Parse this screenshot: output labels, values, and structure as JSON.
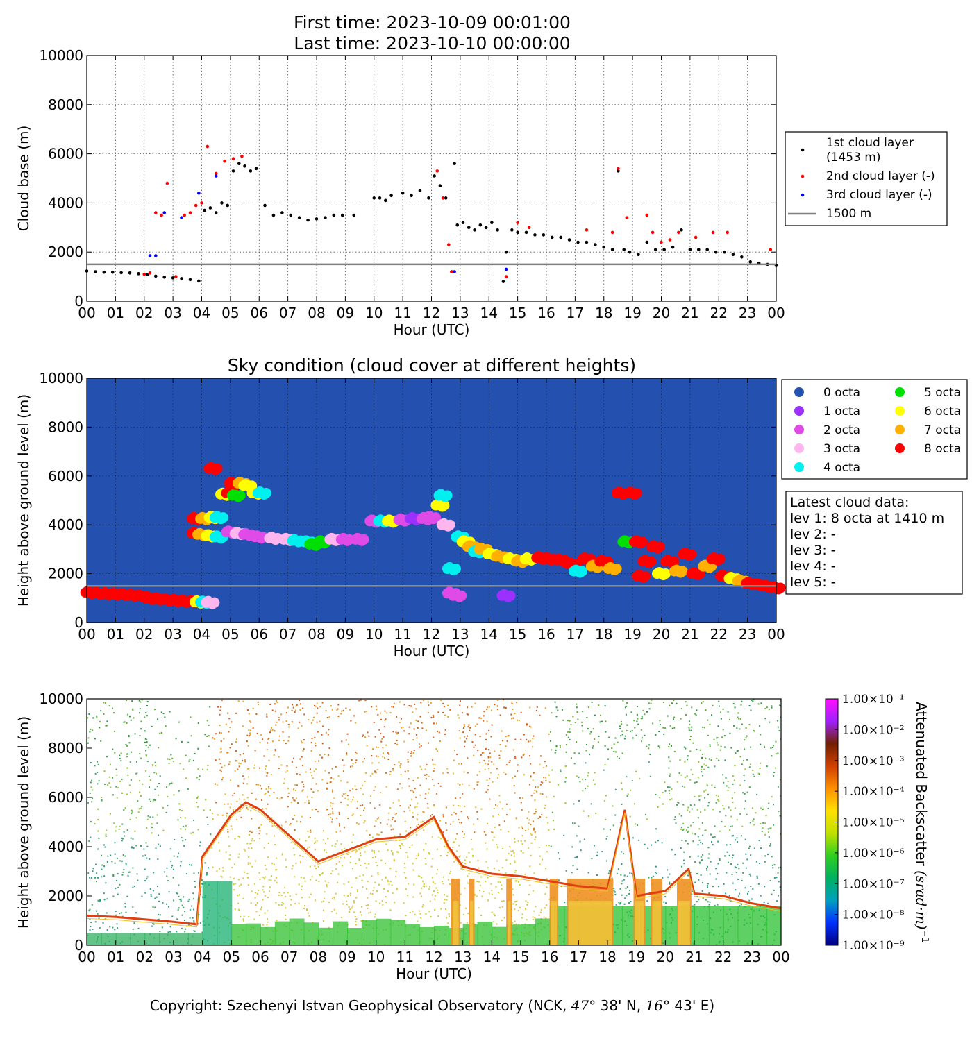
{
  "header": {
    "first_time": "First time: 2023-10-09 00:01:00",
    "last_time": "Last time: 2023-10-10 00:00:00"
  },
  "hour_ticks": [
    "00",
    "01",
    "02",
    "03",
    "04",
    "05",
    "06",
    "07",
    "08",
    "09",
    "10",
    "11",
    "12",
    "13",
    "14",
    "15",
    "16",
    "17",
    "18",
    "19",
    "20",
    "21",
    "22",
    "23",
    "00"
  ],
  "height_ticks": [
    "0",
    "2000",
    "4000",
    "6000",
    "8000",
    "10000"
  ],
  "xlabel": "Hour (UTC)",
  "chart_data": [
    {
      "type": "scatter",
      "xlabel": "Hour (UTC)",
      "ylabel": "Cloud base (m)",
      "xlim": [
        0,
        24
      ],
      "ylim": [
        0,
        10000
      ],
      "grid": true,
      "legend_position": "right",
      "series": [
        {
          "name": "1st cloud layer\n(1453 m)",
          "color": "#000000",
          "x": [
            0.0,
            0.3,
            0.6,
            0.9,
            1.2,
            1.5,
            1.8,
            2.1,
            2.4,
            2.7,
            3.0,
            3.3,
            3.6,
            3.9,
            4.1,
            4.3,
            4.5,
            4.7,
            4.9,
            5.1,
            5.3,
            5.5,
            5.7,
            5.9,
            6.2,
            6.5,
            6.8,
            7.1,
            7.4,
            7.7,
            8.0,
            8.3,
            8.6,
            8.9,
            9.3,
            10.0,
            10.2,
            10.4,
            10.6,
            11.0,
            11.3,
            11.6,
            11.9,
            12.1,
            12.3,
            12.5,
            12.7,
            12.8,
            12.9,
            13.1,
            13.3,
            13.5,
            13.7,
            13.9,
            14.1,
            14.3,
            14.5,
            14.6,
            14.8,
            15.0,
            15.3,
            15.6,
            15.9,
            16.2,
            16.5,
            16.8,
            17.1,
            17.4,
            17.7,
            18.0,
            18.3,
            18.5,
            18.7,
            18.9,
            19.2,
            19.5,
            19.8,
            20.1,
            20.4,
            20.7,
            21.0,
            21.3,
            21.6,
            21.9,
            22.2,
            22.5,
            22.8,
            23.1,
            23.4,
            23.7,
            24.0
          ],
          "y": [
            1230,
            1200,
            1180,
            1180,
            1160,
            1150,
            1120,
            1080,
            1020,
            980,
            950,
            920,
            880,
            820,
            3700,
            3800,
            3600,
            4000,
            3900,
            5300,
            5600,
            5500,
            5300,
            5400,
            3900,
            3500,
            3600,
            3500,
            3400,
            3300,
            3350,
            3400,
            3500,
            3500,
            3500,
            4200,
            4200,
            4100,
            4300,
            4400,
            4300,
            4500,
            4200,
            5100,
            4700,
            4200,
            1200,
            5600,
            3100,
            3200,
            3000,
            2900,
            3100,
            3000,
            3200,
            2900,
            800,
            2000,
            2900,
            2800,
            2800,
            2700,
            2700,
            2600,
            2600,
            2500,
            2400,
            2400,
            2300,
            2200,
            2100,
            5300,
            2100,
            2000,
            1900,
            2400,
            2100,
            2100,
            2200,
            2900,
            2100,
            2100,
            2100,
            2000,
            2000,
            1900,
            1800,
            1600,
            1550,
            1500,
            1450
          ]
        },
        {
          "name": "2nd cloud layer (-)",
          "color": "#ff0000",
          "x": [
            2.0,
            2.2,
            2.4,
            2.6,
            2.8,
            3.1,
            3.4,
            3.6,
            3.8,
            4.0,
            4.2,
            4.5,
            4.8,
            5.1,
            5.4,
            12.2,
            12.4,
            12.6,
            12.7,
            14.6,
            15.0,
            15.4,
            17.4,
            18.3,
            18.5,
            18.8,
            19.5,
            19.7,
            20.0,
            20.3,
            20.6,
            21.2,
            21.8,
            22.3,
            23.8
          ],
          "y": [
            1100,
            1150,
            3600,
            3500,
            4800,
            1000,
            3500,
            3600,
            3900,
            4000,
            6300,
            5200,
            5700,
            5800,
            5900,
            5300,
            4200,
            2300,
            1200,
            1000,
            3200,
            3000,
            2900,
            2800,
            5400,
            3400,
            3500,
            2800,
            2400,
            2500,
            2800,
            2600,
            2800,
            2800,
            2100
          ]
        },
        {
          "name": "3rd cloud layer (-)",
          "color": "#0000ff",
          "x": [
            2.2,
            2.4,
            2.7,
            3.3,
            3.9,
            4.5,
            12.8,
            14.6
          ],
          "y": [
            1850,
            1850,
            3600,
            3400,
            4400,
            5100,
            1200,
            1300
          ]
        },
        {
          "name": "1500 m",
          "color": "#808080",
          "x": [
            0,
            24
          ],
          "y": [
            1500,
            1500
          ]
        }
      ]
    },
    {
      "type": "scatter",
      "title": "Sky condition (cloud cover at different heights)",
      "xlabel": "Hour (UTC)",
      "ylabel": "Height above ground level (m)",
      "xlim": [
        0,
        24
      ],
      "ylim": [
        0,
        10000
      ],
      "background": "#2451b0",
      "grid": true,
      "legend_position": "top-right",
      "legend": [
        {
          "name": "0 octa",
          "color": "#2451b0"
        },
        {
          "name": "1 octa",
          "color": "#9b30ff"
        },
        {
          "name": "2 octa",
          "color": "#e04be8"
        },
        {
          "name": "3 octa",
          "color": "#ffb6ee"
        },
        {
          "name": "4 octa",
          "color": "#00f0f0"
        },
        {
          "name": "5 octa",
          "color": "#00e000"
        },
        {
          "name": "6 octa",
          "color": "#ffff00"
        },
        {
          "name": "7 octa",
          "color": "#ffb000"
        },
        {
          "name": "8 octa",
          "color": "#ff0000"
        }
      ],
      "points": [
        {
          "x": 0.1,
          "y": 1230,
          "o": 8
        },
        {
          "x": 0.4,
          "y": 1200,
          "o": 8
        },
        {
          "x": 0.7,
          "y": 1180,
          "o": 8
        },
        {
          "x": 1.0,
          "y": 1170,
          "o": 8
        },
        {
          "x": 1.3,
          "y": 1150,
          "o": 8
        },
        {
          "x": 1.6,
          "y": 1120,
          "o": 8
        },
        {
          "x": 1.9,
          "y": 1080,
          "o": 8
        },
        {
          "x": 2.2,
          "y": 1000,
          "o": 8
        },
        {
          "x": 2.5,
          "y": 960,
          "o": 8
        },
        {
          "x": 2.8,
          "y": 930,
          "o": 8
        },
        {
          "x": 3.1,
          "y": 900,
          "o": 8
        },
        {
          "x": 3.4,
          "y": 880,
          "o": 8
        },
        {
          "x": 3.7,
          "y": 860,
          "o": 8
        },
        {
          "x": 3.9,
          "y": 840,
          "o": 6
        },
        {
          "x": 4.1,
          "y": 830,
          "o": 4
        },
        {
          "x": 4.3,
          "y": 820,
          "o": 3
        },
        {
          "x": 3.8,
          "y": 3650,
          "o": 8
        },
        {
          "x": 4.0,
          "y": 3600,
          "o": 7
        },
        {
          "x": 4.3,
          "y": 3550,
          "o": 6
        },
        {
          "x": 4.6,
          "y": 3500,
          "o": 4
        },
        {
          "x": 3.8,
          "y": 4250,
          "o": 8
        },
        {
          "x": 4.1,
          "y": 4250,
          "o": 7
        },
        {
          "x": 4.4,
          "y": 4300,
          "o": 6
        },
        {
          "x": 4.6,
          "y": 4300,
          "o": 4
        },
        {
          "x": 4.4,
          "y": 6300,
          "o": 8
        },
        {
          "x": 4.8,
          "y": 5250,
          "o": 6
        },
        {
          "x": 5.0,
          "y": 5300,
          "o": 8
        },
        {
          "x": 5.2,
          "y": 5200,
          "o": 5
        },
        {
          "x": 5.1,
          "y": 5700,
          "o": 8
        },
        {
          "x": 5.4,
          "y": 5700,
          "o": 7
        },
        {
          "x": 5.6,
          "y": 5600,
          "o": 6
        },
        {
          "x": 5.9,
          "y": 5300,
          "o": 6
        },
        {
          "x": 6.1,
          "y": 5300,
          "o": 4
        },
        {
          "x": 5.0,
          "y": 3700,
          "o": 2
        },
        {
          "x": 5.3,
          "y": 3650,
          "o": 3
        },
        {
          "x": 5.6,
          "y": 3600,
          "o": 2
        },
        {
          "x": 6.0,
          "y": 3500,
          "o": 2
        },
        {
          "x": 6.5,
          "y": 3450,
          "o": 3
        },
        {
          "x": 7.0,
          "y": 3400,
          "o": 3
        },
        {
          "x": 7.3,
          "y": 3350,
          "o": 4
        },
        {
          "x": 7.7,
          "y": 3300,
          "o": 4
        },
        {
          "x": 7.9,
          "y": 3200,
          "o": 5
        },
        {
          "x": 8.2,
          "y": 3300,
          "o": 5
        },
        {
          "x": 8.6,
          "y": 3400,
          "o": 3
        },
        {
          "x": 9.0,
          "y": 3400,
          "o": 2
        },
        {
          "x": 9.5,
          "y": 3400,
          "o": 2
        },
        {
          "x": 10.0,
          "y": 4150,
          "o": 2
        },
        {
          "x": 10.3,
          "y": 4150,
          "o": 4
        },
        {
          "x": 10.6,
          "y": 4150,
          "o": 6
        },
        {
          "x": 11.0,
          "y": 4200,
          "o": 2
        },
        {
          "x": 11.4,
          "y": 4250,
          "o": 1
        },
        {
          "x": 11.8,
          "y": 4250,
          "o": 2
        },
        {
          "x": 12.0,
          "y": 4300,
          "o": 2
        },
        {
          "x": 12.3,
          "y": 4800,
          "o": 6
        },
        {
          "x": 12.4,
          "y": 5200,
          "o": 4
        },
        {
          "x": 12.5,
          "y": 4000,
          "o": 3
        },
        {
          "x": 12.7,
          "y": 2200,
          "o": 4
        },
        {
          "x": 12.7,
          "y": 1200,
          "o": 2
        },
        {
          "x": 12.9,
          "y": 1100,
          "o": 2
        },
        {
          "x": 13.0,
          "y": 3500,
          "o": 4
        },
        {
          "x": 13.2,
          "y": 3300,
          "o": 6
        },
        {
          "x": 13.4,
          "y": 3100,
          "o": 7
        },
        {
          "x": 13.6,
          "y": 2900,
          "o": 4
        },
        {
          "x": 13.8,
          "y": 3000,
          "o": 7
        },
        {
          "x": 14.1,
          "y": 2800,
          "o": 6
        },
        {
          "x": 14.4,
          "y": 2700,
          "o": 7
        },
        {
          "x": 14.6,
          "y": 1100,
          "o": 1
        },
        {
          "x": 14.8,
          "y": 2600,
          "o": 6
        },
        {
          "x": 15.1,
          "y": 2500,
          "o": 7
        },
        {
          "x": 15.4,
          "y": 2600,
          "o": 6
        },
        {
          "x": 15.8,
          "y": 2650,
          "o": 8
        },
        {
          "x": 16.1,
          "y": 2600,
          "o": 8
        },
        {
          "x": 16.5,
          "y": 2550,
          "o": 8
        },
        {
          "x": 16.9,
          "y": 2400,
          "o": 8
        },
        {
          "x": 17.1,
          "y": 2100,
          "o": 4
        },
        {
          "x": 17.4,
          "y": 2600,
          "o": 8
        },
        {
          "x": 17.7,
          "y": 2300,
          "o": 7
        },
        {
          "x": 18.0,
          "y": 2500,
          "o": 8
        },
        {
          "x": 18.3,
          "y": 2200,
          "o": 7
        },
        {
          "x": 18.6,
          "y": 5300,
          "o": 8
        },
        {
          "x": 19.0,
          "y": 5300,
          "o": 8
        },
        {
          "x": 18.8,
          "y": 3300,
          "o": 5
        },
        {
          "x": 19.2,
          "y": 3300,
          "o": 8
        },
        {
          "x": 19.3,
          "y": 1900,
          "o": 8
        },
        {
          "x": 19.5,
          "y": 2500,
          "o": 8
        },
        {
          "x": 19.8,
          "y": 3100,
          "o": 8
        },
        {
          "x": 20.0,
          "y": 2000,
          "o": 6
        },
        {
          "x": 20.3,
          "y": 2500,
          "o": 8
        },
        {
          "x": 20.6,
          "y": 2100,
          "o": 7
        },
        {
          "x": 20.9,
          "y": 2800,
          "o": 8
        },
        {
          "x": 21.2,
          "y": 2000,
          "o": 8
        },
        {
          "x": 21.6,
          "y": 2300,
          "o": 7
        },
        {
          "x": 21.9,
          "y": 2600,
          "o": 8
        },
        {
          "x": 22.2,
          "y": 1900,
          "o": 8
        },
        {
          "x": 22.5,
          "y": 1800,
          "o": 6
        },
        {
          "x": 22.8,
          "y": 1700,
          "o": 7
        },
        {
          "x": 23.1,
          "y": 1600,
          "o": 8
        },
        {
          "x": 23.4,
          "y": 1550,
          "o": 8
        },
        {
          "x": 23.7,
          "y": 1480,
          "o": 8
        },
        {
          "x": 24.0,
          "y": 1420,
          "o": 8
        }
      ],
      "reference_line_y": 1500
    },
    {
      "type": "heatmap",
      "xlabel": "Hour (UTC)",
      "ylabel": "Height above ground level (m)",
      "xlim": [
        0,
        24
      ],
      "ylim": [
        0,
        10000
      ],
      "colorbar_label": "Attenuated Backscatter $(srad \\cdot m)^{-1}$",
      "colorbar_ticks": [
        "1.00×10⁻¹",
        "1.00×10⁻²",
        "1.00×10⁻³",
        "1.00×10⁻⁴",
        "1.00×10⁻⁵",
        "1.00×10⁻⁶",
        "1.00×10⁻⁷",
        "1.00×10⁻⁸",
        "1.00×10⁻⁹"
      ],
      "colormap": [
        "#000080",
        "#0030ff",
        "#00a0c0",
        "#00b060",
        "#30d020",
        "#c0e000",
        "#ffe000",
        "#ff9000",
        "#d04000",
        "#702000",
        "#a020ff",
        "#ff10ff"
      ],
      "cloud_base_trace": {
        "x": [
          0,
          1,
          2,
          3,
          3.8,
          4.0,
          5.0,
          5.5,
          6.0,
          8,
          10,
          11,
          12,
          12.5,
          13,
          14,
          15,
          16,
          17,
          18,
          18.6,
          19,
          20,
          20.8,
          21,
          22,
          23,
          24
        ],
        "y": [
          1200,
          1150,
          1050,
          950,
          850,
          3600,
          5300,
          5800,
          5500,
          3400,
          4300,
          4400,
          5200,
          4000,
          3200,
          2900,
          2800,
          2600,
          2400,
          2300,
          5500,
          2000,
          2200,
          3100,
          2100,
          2000,
          1700,
          1500
        ]
      },
      "precip_bands": [
        [
          12.6,
          12.9
        ],
        [
          13.2,
          13.4
        ],
        [
          14.5,
          14.7
        ],
        [
          16.0,
          16.3
        ],
        [
          16.6,
          18.2
        ],
        [
          18.9,
          19.3
        ],
        [
          19.5,
          19.9
        ],
        [
          20.4,
          20.9
        ]
      ]
    }
  ],
  "panel1_legend": [
    "1st cloud layer",
    "(1453 m)",
    "2nd cloud layer (-)",
    "3rd cloud layer (-)",
    "1500 m"
  ],
  "panel2": {
    "title": "Sky condition (cloud cover at different heights)"
  },
  "latest_box": {
    "title": "Latest cloud data:",
    "lines": [
      "lev 1: 8 octa at 1410 m",
      "lev 2: -",
      "lev 3: -",
      "lev 4: -",
      "lev 5: -"
    ]
  },
  "labels": {
    "ylabel1": "Cloud base (m)",
    "ylabel2": "Height above ground level (m)",
    "ylabel3": "Height above ground level (m)",
    "colorbar": "Attenuated Backscatter",
    "colorbar_units": "(srad·m)",
    "colorbar_exp": "−1"
  },
  "copyright": {
    "prefix": "Copyright: Szechenyi Istvan Geophysical Observatory (NCK, ",
    "lat": "47°",
    "lat_rest": " 38' N, ",
    "lon": "16°",
    "lon_rest": " 43' E)"
  }
}
